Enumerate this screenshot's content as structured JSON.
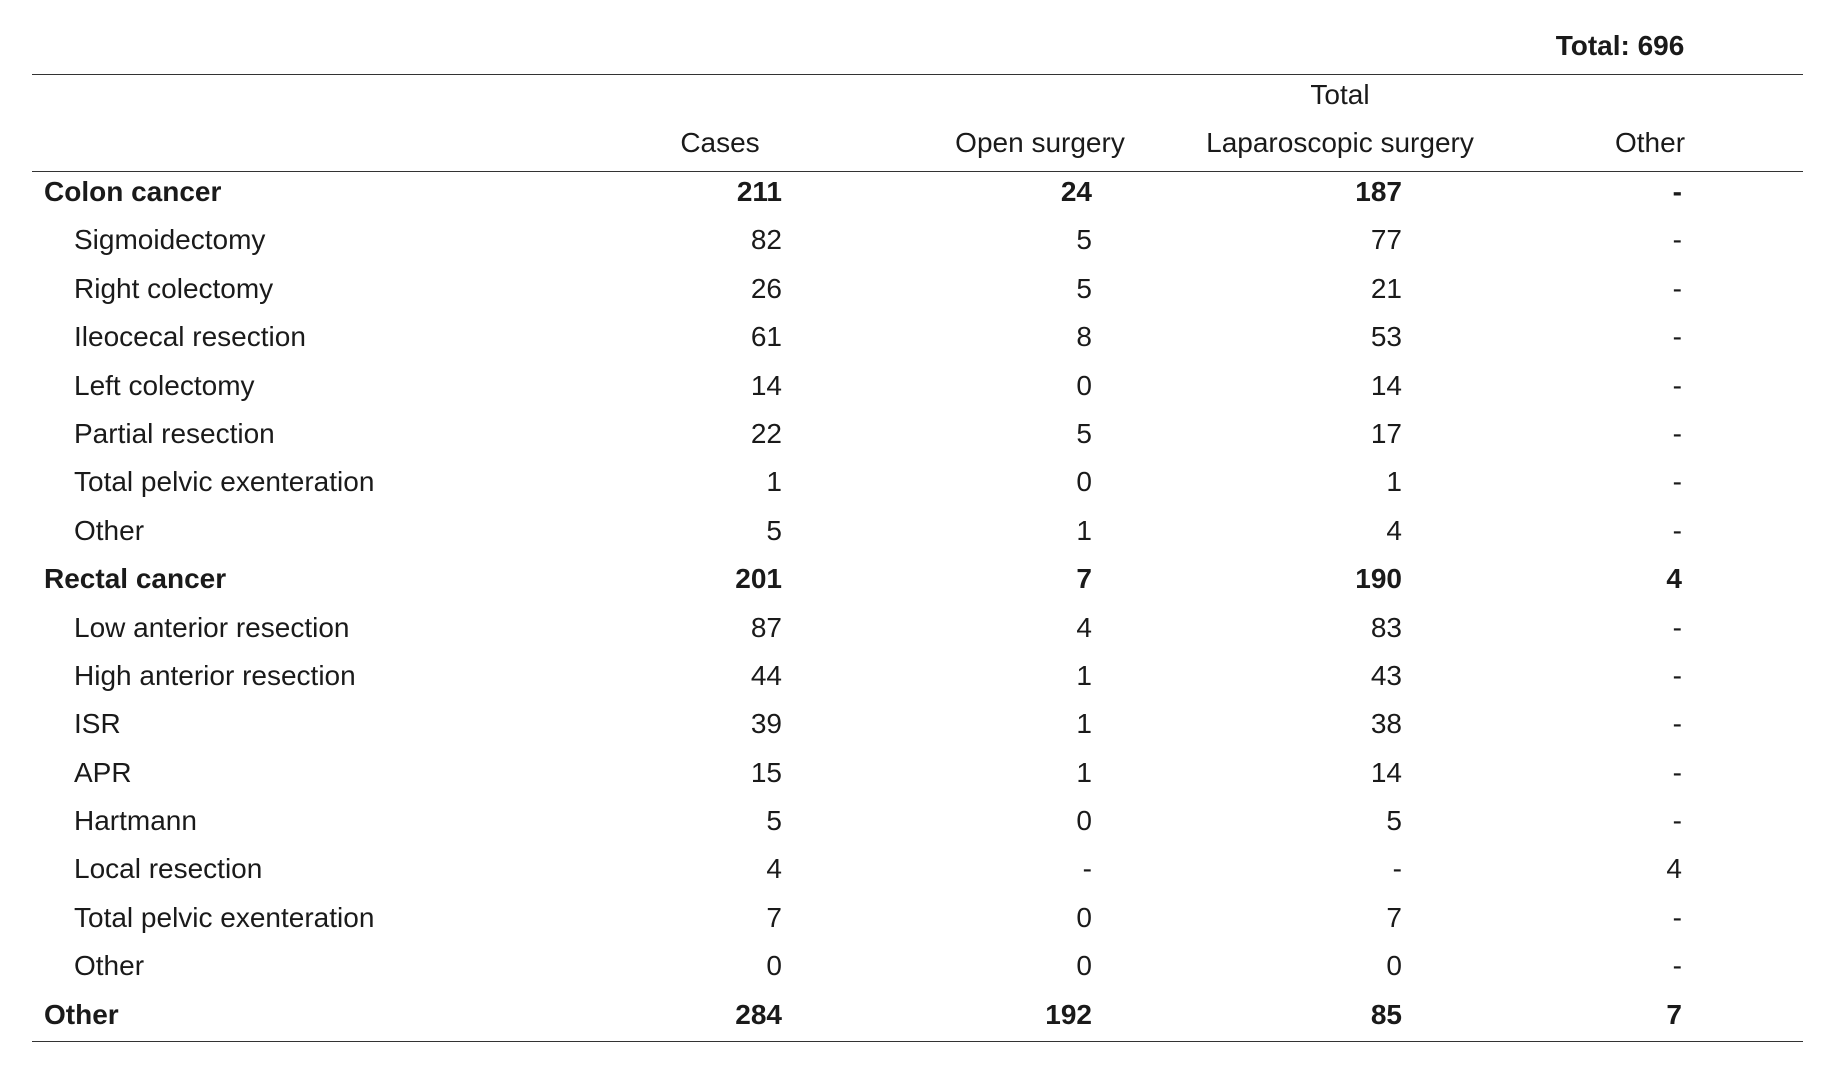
{
  "total_label": "Total: 696",
  "headers": {
    "group": "Total",
    "cases": "Cases",
    "open": "Open surgery",
    "lap": "Laparoscopic surgery",
    "other": "Other"
  },
  "rows": [
    {
      "name": "Colon cancer",
      "level": "main",
      "cases": "211",
      "open": "24",
      "lap": "187",
      "other": "-"
    },
    {
      "name": "Sigmoidectomy",
      "level": "sub",
      "cases": "82",
      "open": "5",
      "lap": "77",
      "other": "-"
    },
    {
      "name": "Right colectomy",
      "level": "sub",
      "cases": "26",
      "open": "5",
      "lap": "21",
      "other": "-"
    },
    {
      "name": "Ileocecal resection",
      "level": "sub",
      "cases": "61",
      "open": "8",
      "lap": "53",
      "other": "-"
    },
    {
      "name": "Left colectomy",
      "level": "sub",
      "cases": "14",
      "open": "0",
      "lap": "14",
      "other": "-"
    },
    {
      "name": "Partial resection",
      "level": "sub",
      "cases": "22",
      "open": "5",
      "lap": "17",
      "other": "-"
    },
    {
      "name": "Total pelvic exenteration",
      "level": "sub",
      "cases": "1",
      "open": "0",
      "lap": "1",
      "other": "-"
    },
    {
      "name": "Other",
      "level": "sub",
      "cases": "5",
      "open": "1",
      "lap": "4",
      "other": "-"
    },
    {
      "name": "Rectal cancer",
      "level": "main",
      "cases": "201",
      "open": "7",
      "lap": "190",
      "other": "4"
    },
    {
      "name": "Low anterior resection",
      "level": "sub",
      "cases": "87",
      "open": "4",
      "lap": "83",
      "other": "-"
    },
    {
      "name": "High anterior resection",
      "level": "sub",
      "cases": "44",
      "open": "1",
      "lap": "43",
      "other": "-"
    },
    {
      "name": "ISR",
      "level": "sub",
      "cases": "39",
      "open": "1",
      "lap": "38",
      "other": "-"
    },
    {
      "name": "APR",
      "level": "sub",
      "cases": "15",
      "open": "1",
      "lap": "14",
      "other": "-"
    },
    {
      "name": "Hartmann",
      "level": "sub",
      "cases": "5",
      "open": "0",
      "lap": "5",
      "other": "-"
    },
    {
      "name": "Local resection",
      "level": "sub",
      "cases": "4",
      "open": "-",
      "lap": "-",
      "other": "4"
    },
    {
      "name": "Total pelvic exenteration",
      "level": "sub",
      "cases": "7",
      "open": "0",
      "lap": "7",
      "other": "-"
    },
    {
      "name": "Other",
      "level": "sub",
      "cases": "0",
      "open": "0",
      "lap": "0",
      "other": "-"
    },
    {
      "name": "Other",
      "level": "main",
      "cases": "284",
      "open": "192",
      "lap": "85",
      "other": "7"
    }
  ]
}
